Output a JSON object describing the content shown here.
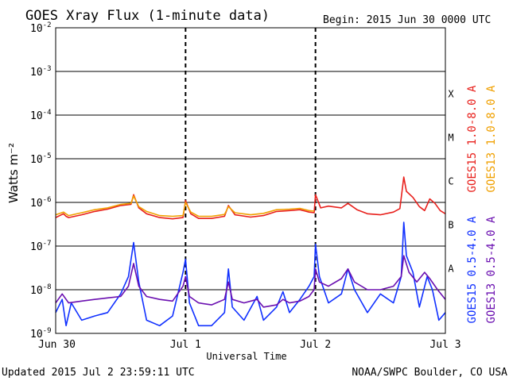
{
  "header": {
    "title": "GOES Xray Flux (1-minute data)",
    "begin": "Begin:  2015 Jun 30 0000 UTC"
  },
  "footer": {
    "updated": "Updated 2015 Jul  2 23:59:11 UTC",
    "credit": "NOAA/SWPC Boulder, CO USA"
  },
  "colors": {
    "goes15_long": "#e8201c",
    "goes13_long": "#f0a000",
    "goes15_short": "#1030ff",
    "goes13_short": "#6a0fb0"
  },
  "chart_data": {
    "type": "line",
    "title": "GOES Xray Flux (1-minute data)",
    "xlabel": "Universal Time",
    "ylabel": "Watts m⁻²",
    "yscale": "log",
    "ylim": [
      1e-09,
      0.01
    ],
    "xlim": [
      0,
      3
    ],
    "x_ticks": [
      {
        "value": 0,
        "label": "Jun 30"
      },
      {
        "value": 1,
        "label": "Jul 1"
      },
      {
        "value": 2,
        "label": "Jul 2"
      },
      {
        "value": 3,
        "label": "Jul 3"
      }
    ],
    "y_ticks": [
      {
        "exp": -9,
        "label": "10",
        "sup": "-9"
      },
      {
        "exp": -8,
        "label": "10",
        "sup": "-8"
      },
      {
        "exp": -7,
        "label": "10",
        "sup": "-7"
      },
      {
        "exp": -6,
        "label": "10",
        "sup": "-6"
      },
      {
        "exp": -5,
        "label": "10",
        "sup": "-5"
      },
      {
        "exp": -4,
        "label": "10",
        "sup": "-4"
      },
      {
        "exp": -3,
        "label": "10",
        "sup": "-3"
      },
      {
        "exp": -2,
        "label": "10",
        "sup": "-2"
      }
    ],
    "flare_classes": [
      {
        "label": "X",
        "exp": -4
      },
      {
        "label": "M",
        "exp": -5
      },
      {
        "label": "C",
        "exp": -6
      },
      {
        "label": "B",
        "exp": -7
      },
      {
        "label": "A",
        "exp": -8
      }
    ],
    "grid": true,
    "legend_position": "right",
    "series": [
      {
        "name": "GOES15 1.0-8.0 A",
        "color": "#e8201c",
        "points": [
          [
            0,
            4.5e-07
          ],
          [
            0.06,
            5.5e-07
          ],
          [
            0.08,
            4.8e-07
          ],
          [
            0.1,
            4.5e-07
          ],
          [
            0.2,
            5.2e-07
          ],
          [
            0.3,
            6.2e-07
          ],
          [
            0.4,
            7e-07
          ],
          [
            0.5,
            8.5e-07
          ],
          [
            0.58,
            9e-07
          ],
          [
            0.6,
            1.5e-06
          ],
          [
            0.64,
            7.5e-07
          ],
          [
            0.7,
            5.5e-07
          ],
          [
            0.8,
            4.5e-07
          ],
          [
            0.9,
            4.2e-07
          ],
          [
            0.98,
            4.5e-07
          ],
          [
            1.0,
            1.1e-06
          ],
          [
            1.04,
            5.5e-07
          ],
          [
            1.1,
            4.3e-07
          ],
          [
            1.2,
            4.3e-07
          ],
          [
            1.3,
            4.8e-07
          ],
          [
            1.33,
            8.5e-07
          ],
          [
            1.38,
            5.2e-07
          ],
          [
            1.5,
            4.6e-07
          ],
          [
            1.6,
            5e-07
          ],
          [
            1.7,
            6.2e-07
          ],
          [
            1.8,
            6.5e-07
          ],
          [
            1.88,
            6.8e-07
          ],
          [
            1.95,
            6e-07
          ],
          [
            1.99,
            5.8e-07
          ],
          [
            2.0,
            1.5e-06
          ],
          [
            2.04,
            7.5e-07
          ],
          [
            2.1,
            8.2e-07
          ],
          [
            2.2,
            7.5e-07
          ],
          [
            2.25,
            9.5e-07
          ],
          [
            2.32,
            6.8e-07
          ],
          [
            2.4,
            5.5e-07
          ],
          [
            2.5,
            5.2e-07
          ],
          [
            2.6,
            6e-07
          ],
          [
            2.65,
            7.2e-07
          ],
          [
            2.68,
            3.8e-06
          ],
          [
            2.7,
            1.8e-06
          ],
          [
            2.75,
            1.3e-06
          ],
          [
            2.8,
            8e-07
          ],
          [
            2.84,
            6.5e-07
          ],
          [
            2.88,
            1.2e-06
          ],
          [
            2.92,
            9.5e-07
          ],
          [
            2.96,
            6.5e-07
          ],
          [
            3.0,
            5.5e-07
          ]
        ]
      },
      {
        "name": "GOES13 1.0-8.0 A",
        "color": "#f0a000",
        "points": [
          [
            0,
            5.2e-07
          ],
          [
            0.06,
            6e-07
          ],
          [
            0.1,
            5e-07
          ],
          [
            0.2,
            5.8e-07
          ],
          [
            0.3,
            6.8e-07
          ],
          [
            0.4,
            7.5e-07
          ],
          [
            0.5,
            9e-07
          ],
          [
            0.58,
            9.5e-07
          ],
          [
            0.6,
            1.4e-06
          ],
          [
            0.64,
            8e-07
          ],
          [
            0.7,
            6.2e-07
          ],
          [
            0.8,
            5e-07
          ],
          [
            0.9,
            4.8e-07
          ],
          [
            0.98,
            5e-07
          ],
          [
            1.0,
            1e-06
          ],
          [
            1.04,
            6e-07
          ],
          [
            1.1,
            4.8e-07
          ],
          [
            1.2,
            4.8e-07
          ],
          [
            1.3,
            5.3e-07
          ],
          [
            1.33,
            8e-07
          ],
          [
            1.38,
            5.8e-07
          ],
          [
            1.5,
            5.2e-07
          ],
          [
            1.6,
            5.6e-07
          ],
          [
            1.7,
            6.8e-07
          ],
          [
            1.8,
            7e-07
          ],
          [
            1.88,
            7.3e-07
          ],
          [
            1.95,
            6.5e-07
          ],
          [
            1.99,
            6.3e-07
          ]
        ]
      },
      {
        "name": "GOES15 0.5-4.0 A",
        "color": "#1030ff",
        "points": [
          [
            0,
            3e-09
          ],
          [
            0.05,
            6e-09
          ],
          [
            0.08,
            1.5e-09
          ],
          [
            0.12,
            5e-09
          ],
          [
            0.2,
            2e-09
          ],
          [
            0.3,
            2.5e-09
          ],
          [
            0.4,
            3e-09
          ],
          [
            0.5,
            8e-09
          ],
          [
            0.56,
            2e-08
          ],
          [
            0.6,
            1.2e-07
          ],
          [
            0.64,
            1.5e-08
          ],
          [
            0.7,
            2e-09
          ],
          [
            0.8,
            1.5e-09
          ],
          [
            0.9,
            2.5e-09
          ],
          [
            0.98,
            2.5e-08
          ],
          [
            1.0,
            5e-08
          ],
          [
            1.03,
            5e-09
          ],
          [
            1.1,
            1.5e-09
          ],
          [
            1.2,
            1.5e-09
          ],
          [
            1.3,
            3e-09
          ],
          [
            1.33,
            3e-08
          ],
          [
            1.36,
            4e-09
          ],
          [
            1.45,
            2e-09
          ],
          [
            1.55,
            7e-09
          ],
          [
            1.6,
            2e-09
          ],
          [
            1.7,
            4e-09
          ],
          [
            1.75,
            9e-09
          ],
          [
            1.8,
            3e-09
          ],
          [
            1.88,
            6e-09
          ],
          [
            1.95,
            1.2e-08
          ],
          [
            1.99,
            2e-08
          ],
          [
            2.0,
            1.1e-07
          ],
          [
            2.03,
            2e-08
          ],
          [
            2.1,
            5e-09
          ],
          [
            2.2,
            8e-09
          ],
          [
            2.25,
            3e-08
          ],
          [
            2.3,
            1e-08
          ],
          [
            2.4,
            3e-09
          ],
          [
            2.5,
            8e-09
          ],
          [
            2.6,
            5e-09
          ],
          [
            2.66,
            2e-08
          ],
          [
            2.68,
            3.5e-07
          ],
          [
            2.7,
            6e-08
          ],
          [
            2.75,
            2.5e-08
          ],
          [
            2.8,
            4e-09
          ],
          [
            2.86,
            2e-08
          ],
          [
            2.9,
            1e-08
          ],
          [
            2.95,
            2e-09
          ],
          [
            3.0,
            3e-09
          ]
        ]
      },
      {
        "name": "GOES13 0.5-4.0 A",
        "color": "#6a0fb0",
        "points": [
          [
            0,
            5e-09
          ],
          [
            0.05,
            8e-09
          ],
          [
            0.1,
            5e-09
          ],
          [
            0.2,
            5.5e-09
          ],
          [
            0.3,
            6e-09
          ],
          [
            0.4,
            6.5e-09
          ],
          [
            0.5,
            7e-09
          ],
          [
            0.56,
            1.2e-08
          ],
          [
            0.6,
            4e-08
          ],
          [
            0.64,
            1.2e-08
          ],
          [
            0.7,
            7e-09
          ],
          [
            0.8,
            6e-09
          ],
          [
            0.9,
            5.5e-09
          ],
          [
            0.98,
            1.2e-08
          ],
          [
            1.0,
            2e-08
          ],
          [
            1.03,
            7e-09
          ],
          [
            1.1,
            5e-09
          ],
          [
            1.2,
            4.5e-09
          ],
          [
            1.3,
            6e-09
          ],
          [
            1.33,
            1.5e-08
          ],
          [
            1.36,
            6e-09
          ],
          [
            1.45,
            5e-09
          ],
          [
            1.55,
            6e-09
          ],
          [
            1.6,
            4e-09
          ],
          [
            1.7,
            4.5e-09
          ],
          [
            1.75,
            6e-09
          ],
          [
            1.8,
            5e-09
          ],
          [
            1.88,
            5.5e-09
          ],
          [
            1.95,
            7e-09
          ],
          [
            1.99,
            1e-08
          ],
          [
            2.0,
            3e-08
          ],
          [
            2.03,
            1.5e-08
          ],
          [
            2.1,
            1.2e-08
          ],
          [
            2.2,
            1.8e-08
          ],
          [
            2.25,
            3e-08
          ],
          [
            2.3,
            1.5e-08
          ],
          [
            2.4,
            1e-08
          ],
          [
            2.5,
            1e-08
          ],
          [
            2.6,
            1.2e-08
          ],
          [
            2.66,
            2e-08
          ],
          [
            2.68,
            6e-08
          ],
          [
            2.72,
            2.5e-08
          ],
          [
            2.78,
            1.5e-08
          ],
          [
            2.84,
            2.5e-08
          ],
          [
            2.88,
            1.8e-08
          ],
          [
            2.94,
            1e-08
          ],
          [
            3.0,
            6e-09
          ]
        ]
      }
    ]
  }
}
